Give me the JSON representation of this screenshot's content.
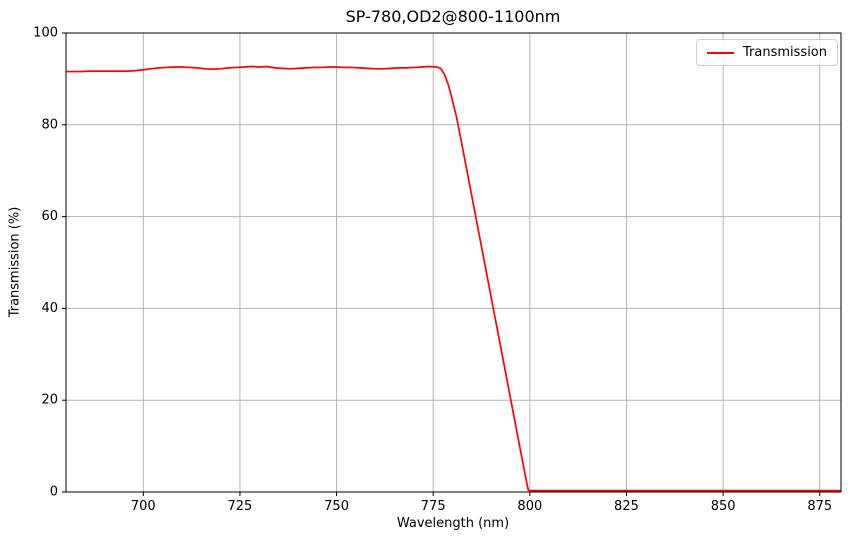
{
  "colors": {
    "line": "#ff0000",
    "grid": "#b3b3b3",
    "spine": "#000000",
    "tick": "#000000",
    "legend_border": "#cccccc",
    "background": "#ffffff"
  },
  "chart_data": {
    "type": "line",
    "title": "SP-780,OD2@800-1100nm",
    "xlabel": "Wavelength (nm)",
    "ylabel": "Transmission (%)",
    "xlim": [
      680,
      880.5
    ],
    "ylim": [
      0,
      100
    ],
    "xticks": [
      700,
      725,
      750,
      775,
      800,
      825,
      850,
      875
    ],
    "yticks": [
      0,
      20,
      40,
      60,
      80,
      100
    ],
    "grid": true,
    "legend": {
      "position": "upper right",
      "entries": [
        "Transmission"
      ]
    },
    "series": [
      {
        "name": "Transmission",
        "color": "#ff0000",
        "points": [
          [
            680,
            91.6
          ],
          [
            682,
            91.6
          ],
          [
            684,
            91.6
          ],
          [
            686,
            91.7
          ],
          [
            688,
            91.7
          ],
          [
            690,
            91.7
          ],
          [
            692,
            91.7
          ],
          [
            694,
            91.7
          ],
          [
            696,
            91.7
          ],
          [
            698,
            91.8
          ],
          [
            700,
            92.0
          ],
          [
            702,
            92.2
          ],
          [
            704,
            92.4
          ],
          [
            706,
            92.5
          ],
          [
            708,
            92.6
          ],
          [
            710,
            92.6
          ],
          [
            712,
            92.5
          ],
          [
            714,
            92.4
          ],
          [
            716,
            92.2
          ],
          [
            718,
            92.1
          ],
          [
            720,
            92.2
          ],
          [
            722,
            92.4
          ],
          [
            724,
            92.5
          ],
          [
            726,
            92.6
          ],
          [
            728,
            92.7
          ],
          [
            730,
            92.6
          ],
          [
            732,
            92.7
          ],
          [
            734,
            92.4
          ],
          [
            736,
            92.3
          ],
          [
            738,
            92.2
          ],
          [
            740,
            92.3
          ],
          [
            742,
            92.4
          ],
          [
            744,
            92.5
          ],
          [
            746,
            92.5
          ],
          [
            748,
            92.6
          ],
          [
            750,
            92.6
          ],
          [
            752,
            92.5
          ],
          [
            754,
            92.5
          ],
          [
            756,
            92.4
          ],
          [
            758,
            92.3
          ],
          [
            760,
            92.2
          ],
          [
            762,
            92.2
          ],
          [
            764,
            92.3
          ],
          [
            766,
            92.4
          ],
          [
            768,
            92.4
          ],
          [
            770,
            92.5
          ],
          [
            772,
            92.6
          ],
          [
            774,
            92.7
          ],
          [
            776,
            92.6
          ],
          [
            777,
            92.2
          ],
          [
            778,
            90.8
          ],
          [
            779,
            88.5
          ],
          [
            780,
            85.2
          ],
          [
            781,
            81.8
          ],
          [
            782,
            77.6
          ],
          [
            783,
            73.2
          ],
          [
            784,
            68.8
          ],
          [
            785,
            64.4
          ],
          [
            786,
            60.0
          ],
          [
            787,
            55.6
          ],
          [
            788,
            51.2
          ],
          [
            789,
            46.8
          ],
          [
            790,
            42.4
          ],
          [
            791,
            38.0
          ],
          [
            792,
            33.6
          ],
          [
            793,
            29.2
          ],
          [
            794,
            24.8
          ],
          [
            795,
            20.4
          ],
          [
            796,
            16.0
          ],
          [
            797,
            11.6
          ],
          [
            798,
            7.2
          ],
          [
            799,
            2.8
          ],
          [
            799.6,
            0.4
          ],
          [
            800,
            0.3
          ],
          [
            805,
            0.3
          ],
          [
            810,
            0.3
          ],
          [
            815,
            0.3
          ],
          [
            820,
            0.3
          ],
          [
            825,
            0.3
          ],
          [
            830,
            0.3
          ],
          [
            835,
            0.3
          ],
          [
            840,
            0.3
          ],
          [
            845,
            0.3
          ],
          [
            850,
            0.3
          ],
          [
            855,
            0.3
          ],
          [
            860,
            0.3
          ],
          [
            865,
            0.3
          ],
          [
            870,
            0.3
          ],
          [
            875,
            0.3
          ],
          [
            880.5,
            0.3
          ]
        ]
      }
    ]
  }
}
